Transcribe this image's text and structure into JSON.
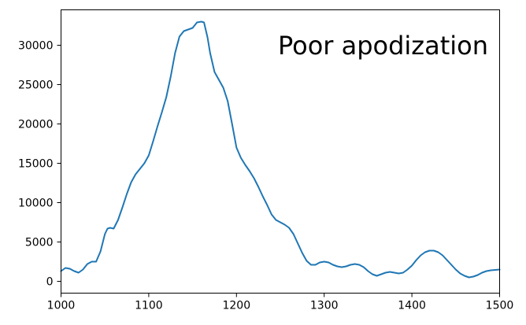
{
  "chart_data": {
    "type": "line",
    "title": "",
    "xlabel": "",
    "ylabel": "",
    "xlim": [
      1000,
      1500
    ],
    "ylim": [
      -1500,
      34500
    ],
    "x_ticks": [
      1000,
      1100,
      1200,
      1300,
      1400,
      1500
    ],
    "y_ticks": [
      0,
      5000,
      10000,
      15000,
      20000,
      25000,
      30000
    ],
    "x_tick_labels": [
      "1000",
      "1100",
      "1200",
      "1300",
      "1400",
      "1500"
    ],
    "y_tick_labels": [
      "0",
      "5000",
      "10000",
      "15000",
      "20000",
      "25000",
      "30000"
    ],
    "grid": false,
    "annotation": "Poor apodization",
    "colors": {
      "line": "#1f77b4"
    },
    "series": [
      {
        "points": [
          [
            1000,
            1300
          ],
          [
            1005,
            1700
          ],
          [
            1010,
            1600
          ],
          [
            1015,
            1300
          ],
          [
            1020,
            1100
          ],
          [
            1025,
            1500
          ],
          [
            1030,
            2200
          ],
          [
            1035,
            2500
          ],
          [
            1040,
            2500
          ],
          [
            1045,
            3800
          ],
          [
            1050,
            6000
          ],
          [
            1053,
            6700
          ],
          [
            1056,
            6800
          ],
          [
            1060,
            6700
          ],
          [
            1065,
            7800
          ],
          [
            1070,
            9400
          ],
          [
            1075,
            11100
          ],
          [
            1080,
            12600
          ],
          [
            1085,
            13600
          ],
          [
            1090,
            14300
          ],
          [
            1095,
            15000
          ],
          [
            1100,
            16000
          ],
          [
            1105,
            17800
          ],
          [
            1110,
            19700
          ],
          [
            1115,
            21500
          ],
          [
            1120,
            23400
          ],
          [
            1125,
            26000
          ],
          [
            1130,
            29000
          ],
          [
            1135,
            31100
          ],
          [
            1140,
            31800
          ],
          [
            1145,
            32000
          ],
          [
            1150,
            32200
          ],
          [
            1155,
            32900
          ],
          [
            1160,
            33000
          ],
          [
            1163,
            32900
          ],
          [
            1167,
            31000
          ],
          [
            1170,
            29000
          ],
          [
            1175,
            26600
          ],
          [
            1180,
            25600
          ],
          [
            1185,
            24600
          ],
          [
            1190,
            22900
          ],
          [
            1195,
            20000
          ],
          [
            1200,
            17000
          ],
          [
            1205,
            15700
          ],
          [
            1210,
            14800
          ],
          [
            1215,
            14000
          ],
          [
            1220,
            13100
          ],
          [
            1225,
            12000
          ],
          [
            1230,
            10800
          ],
          [
            1235,
            9700
          ],
          [
            1240,
            8500
          ],
          [
            1245,
            7800
          ],
          [
            1250,
            7500
          ],
          [
            1255,
            7200
          ],
          [
            1260,
            6800
          ],
          [
            1265,
            6000
          ],
          [
            1270,
            4800
          ],
          [
            1275,
            3600
          ],
          [
            1280,
            2600
          ],
          [
            1285,
            2100
          ],
          [
            1290,
            2100
          ],
          [
            1295,
            2400
          ],
          [
            1300,
            2500
          ],
          [
            1305,
            2400
          ],
          [
            1310,
            2100
          ],
          [
            1315,
            1900
          ],
          [
            1320,
            1800
          ],
          [
            1325,
            1900
          ],
          [
            1330,
            2100
          ],
          [
            1335,
            2200
          ],
          [
            1340,
            2100
          ],
          [
            1345,
            1800
          ],
          [
            1350,
            1300
          ],
          [
            1355,
            900
          ],
          [
            1360,
            700
          ],
          [
            1365,
            900
          ],
          [
            1370,
            1100
          ],
          [
            1375,
            1200
          ],
          [
            1380,
            1100
          ],
          [
            1385,
            1000
          ],
          [
            1390,
            1100
          ],
          [
            1395,
            1500
          ],
          [
            1400,
            2000
          ],
          [
            1405,
            2700
          ],
          [
            1410,
            3300
          ],
          [
            1415,
            3700
          ],
          [
            1420,
            3900
          ],
          [
            1425,
            3900
          ],
          [
            1430,
            3700
          ],
          [
            1435,
            3300
          ],
          [
            1440,
            2700
          ],
          [
            1445,
            2100
          ],
          [
            1450,
            1500
          ],
          [
            1455,
            1000
          ],
          [
            1460,
            700
          ],
          [
            1465,
            500
          ],
          [
            1470,
            600
          ],
          [
            1475,
            800
          ],
          [
            1480,
            1100
          ],
          [
            1485,
            1300
          ],
          [
            1490,
            1400
          ],
          [
            1495,
            1450
          ],
          [
            1500,
            1500
          ]
        ]
      }
    ]
  }
}
